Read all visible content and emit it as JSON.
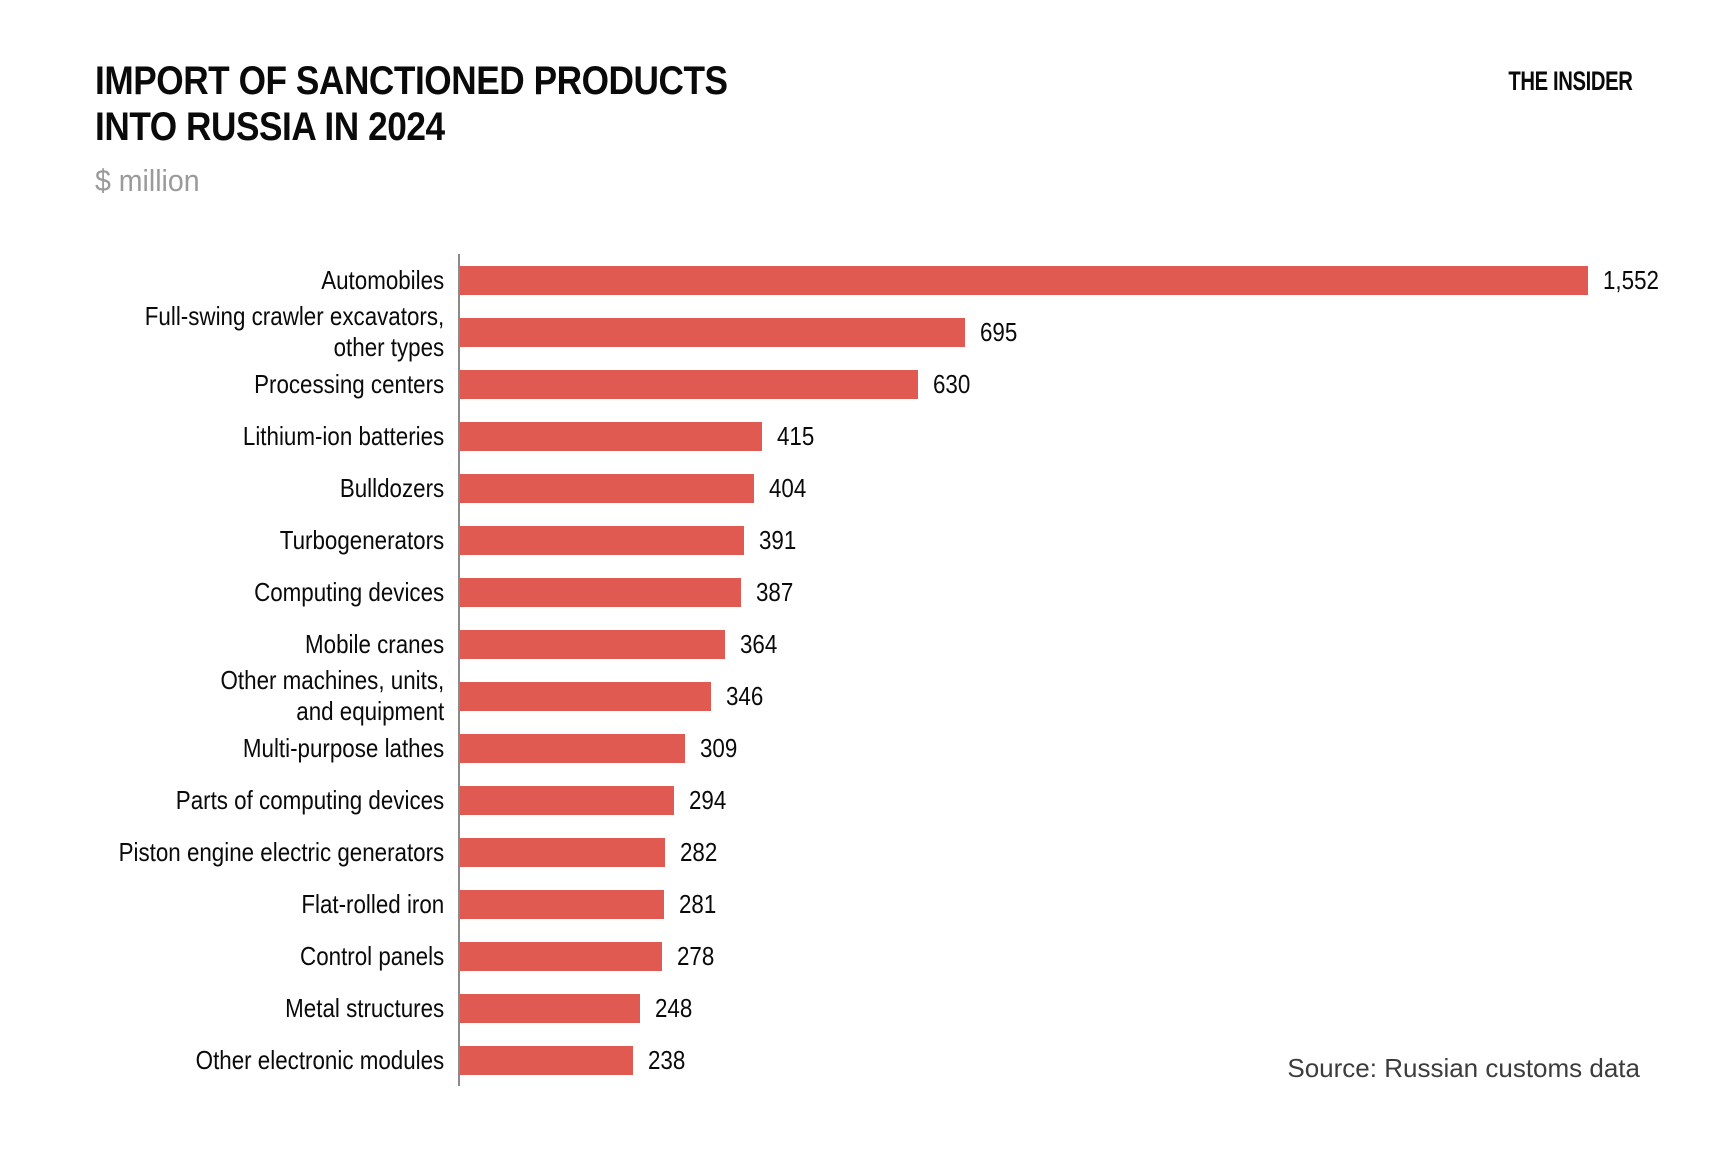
{
  "header": {
    "title_line1": "IMPORT OF SANCTIONED PRODUCTS",
    "title_line2": "INTO RUSSIA IN 2024",
    "subtitle": "$ million",
    "brand": "THE INSIDER"
  },
  "footer": {
    "source": "Source: Russian customs data"
  },
  "chart_data": {
    "type": "bar",
    "orientation": "horizontal",
    "title": "IMPORT OF SANCTIONED PRODUCTS INTO RUSSIA IN 2024",
    "unit": "$ million",
    "xlim": [
      0,
      1552
    ],
    "grid": false,
    "legend": false,
    "bar_color": "#E15A51",
    "axis_color": "#8a8a8a",
    "value_label_color": "#0a0a0a",
    "rows": [
      {
        "label": "Automobiles",
        "value": 1552,
        "display": "1,552"
      },
      {
        "label": "Full-swing crawler excavators,\nother types",
        "value": 695,
        "display": "695"
      },
      {
        "label": "Processing centers",
        "value": 630,
        "display": "630"
      },
      {
        "label": "Lithium-ion batteries",
        "value": 415,
        "display": "415"
      },
      {
        "label": "Bulldozers",
        "value": 404,
        "display": "404"
      },
      {
        "label": "Turbogenerators",
        "value": 391,
        "display": "391"
      },
      {
        "label": "Computing devices",
        "value": 387,
        "display": "387"
      },
      {
        "label": "Mobile cranes",
        "value": 364,
        "display": "364"
      },
      {
        "label": "Other machines, units,\nand equipment",
        "value": 346,
        "display": "346"
      },
      {
        "label": "Multi-purpose lathes",
        "value": 309,
        "display": "309"
      },
      {
        "label": "Parts of computing devices",
        "value": 294,
        "display": "294"
      },
      {
        "label": "Piston engine electric generators",
        "value": 282,
        "display": "282"
      },
      {
        "label": "Flat-rolled iron",
        "value": 281,
        "display": "281"
      },
      {
        "label": "Control panels",
        "value": 278,
        "display": "278"
      },
      {
        "label": "Metal structures",
        "value": 248,
        "display": "248"
      },
      {
        "label": "Other electronic modules",
        "value": 238,
        "display": "238"
      }
    ]
  }
}
